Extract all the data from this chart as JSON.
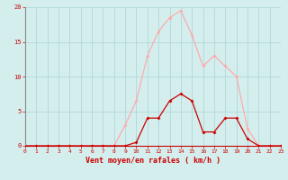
{
  "x": [
    0,
    1,
    2,
    3,
    4,
    5,
    6,
    7,
    8,
    9,
    10,
    11,
    12,
    13,
    14,
    15,
    16,
    17,
    18,
    19,
    20,
    21,
    22,
    23
  ],
  "y_rafales": [
    0,
    0,
    0,
    0,
    0,
    0,
    0,
    0,
    0,
    3.0,
    6.5,
    13.0,
    16.5,
    18.5,
    19.5,
    16.0,
    11.5,
    13.0,
    11.5,
    10.0,
    2.5,
    0,
    0,
    0
  ],
  "y_moyen": [
    0,
    0,
    0,
    0,
    0,
    0,
    0,
    0,
    0,
    0,
    0.5,
    4.0,
    4.0,
    6.5,
    7.5,
    6.5,
    2.0,
    2.0,
    4.0,
    4.0,
    1.0,
    0,
    0,
    0
  ],
  "color_rafales": "#ffaaaa",
  "color_moyen": "#cc0000",
  "bg_color": "#d4eeee",
  "grid_color": "#b0d8d8",
  "xlabel": "Vent moyen/en rafales ( km/h )",
  "xlabel_color": "#cc0000",
  "tick_color": "#cc0000",
  "ylim": [
    0,
    20
  ],
  "xlim": [
    0,
    23
  ],
  "yticks": [
    0,
    5,
    10,
    15,
    20
  ],
  "xticks": [
    0,
    1,
    2,
    3,
    4,
    5,
    6,
    7,
    8,
    9,
    10,
    11,
    12,
    13,
    14,
    15,
    16,
    17,
    18,
    19,
    20,
    21,
    22,
    23
  ]
}
